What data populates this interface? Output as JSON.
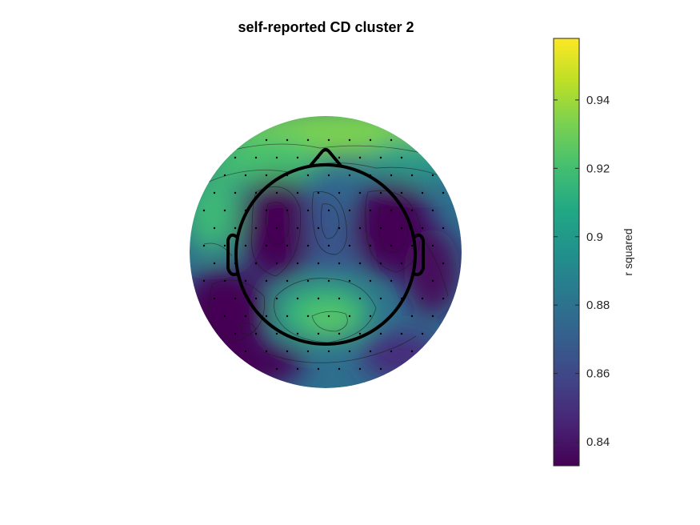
{
  "chart_data": {
    "type": "heatmap",
    "subtype": "topographic-scalp-map",
    "title": "self-reported CD cluster 2",
    "colormap": "viridis",
    "colorbar": {
      "label": "r squared",
      "range": [
        0.833,
        0.958
      ],
      "ticks": [
        0.84,
        0.86,
        0.88,
        0.9,
        0.92,
        0.94
      ],
      "tick_labels": [
        "0.84",
        "0.86",
        "0.88",
        "0.9",
        "0.92",
        "0.94"
      ],
      "placement": "right"
    },
    "map_features": {
      "head_outline": true,
      "contour_lines": true,
      "electrode_markers": true
    }
  }
}
